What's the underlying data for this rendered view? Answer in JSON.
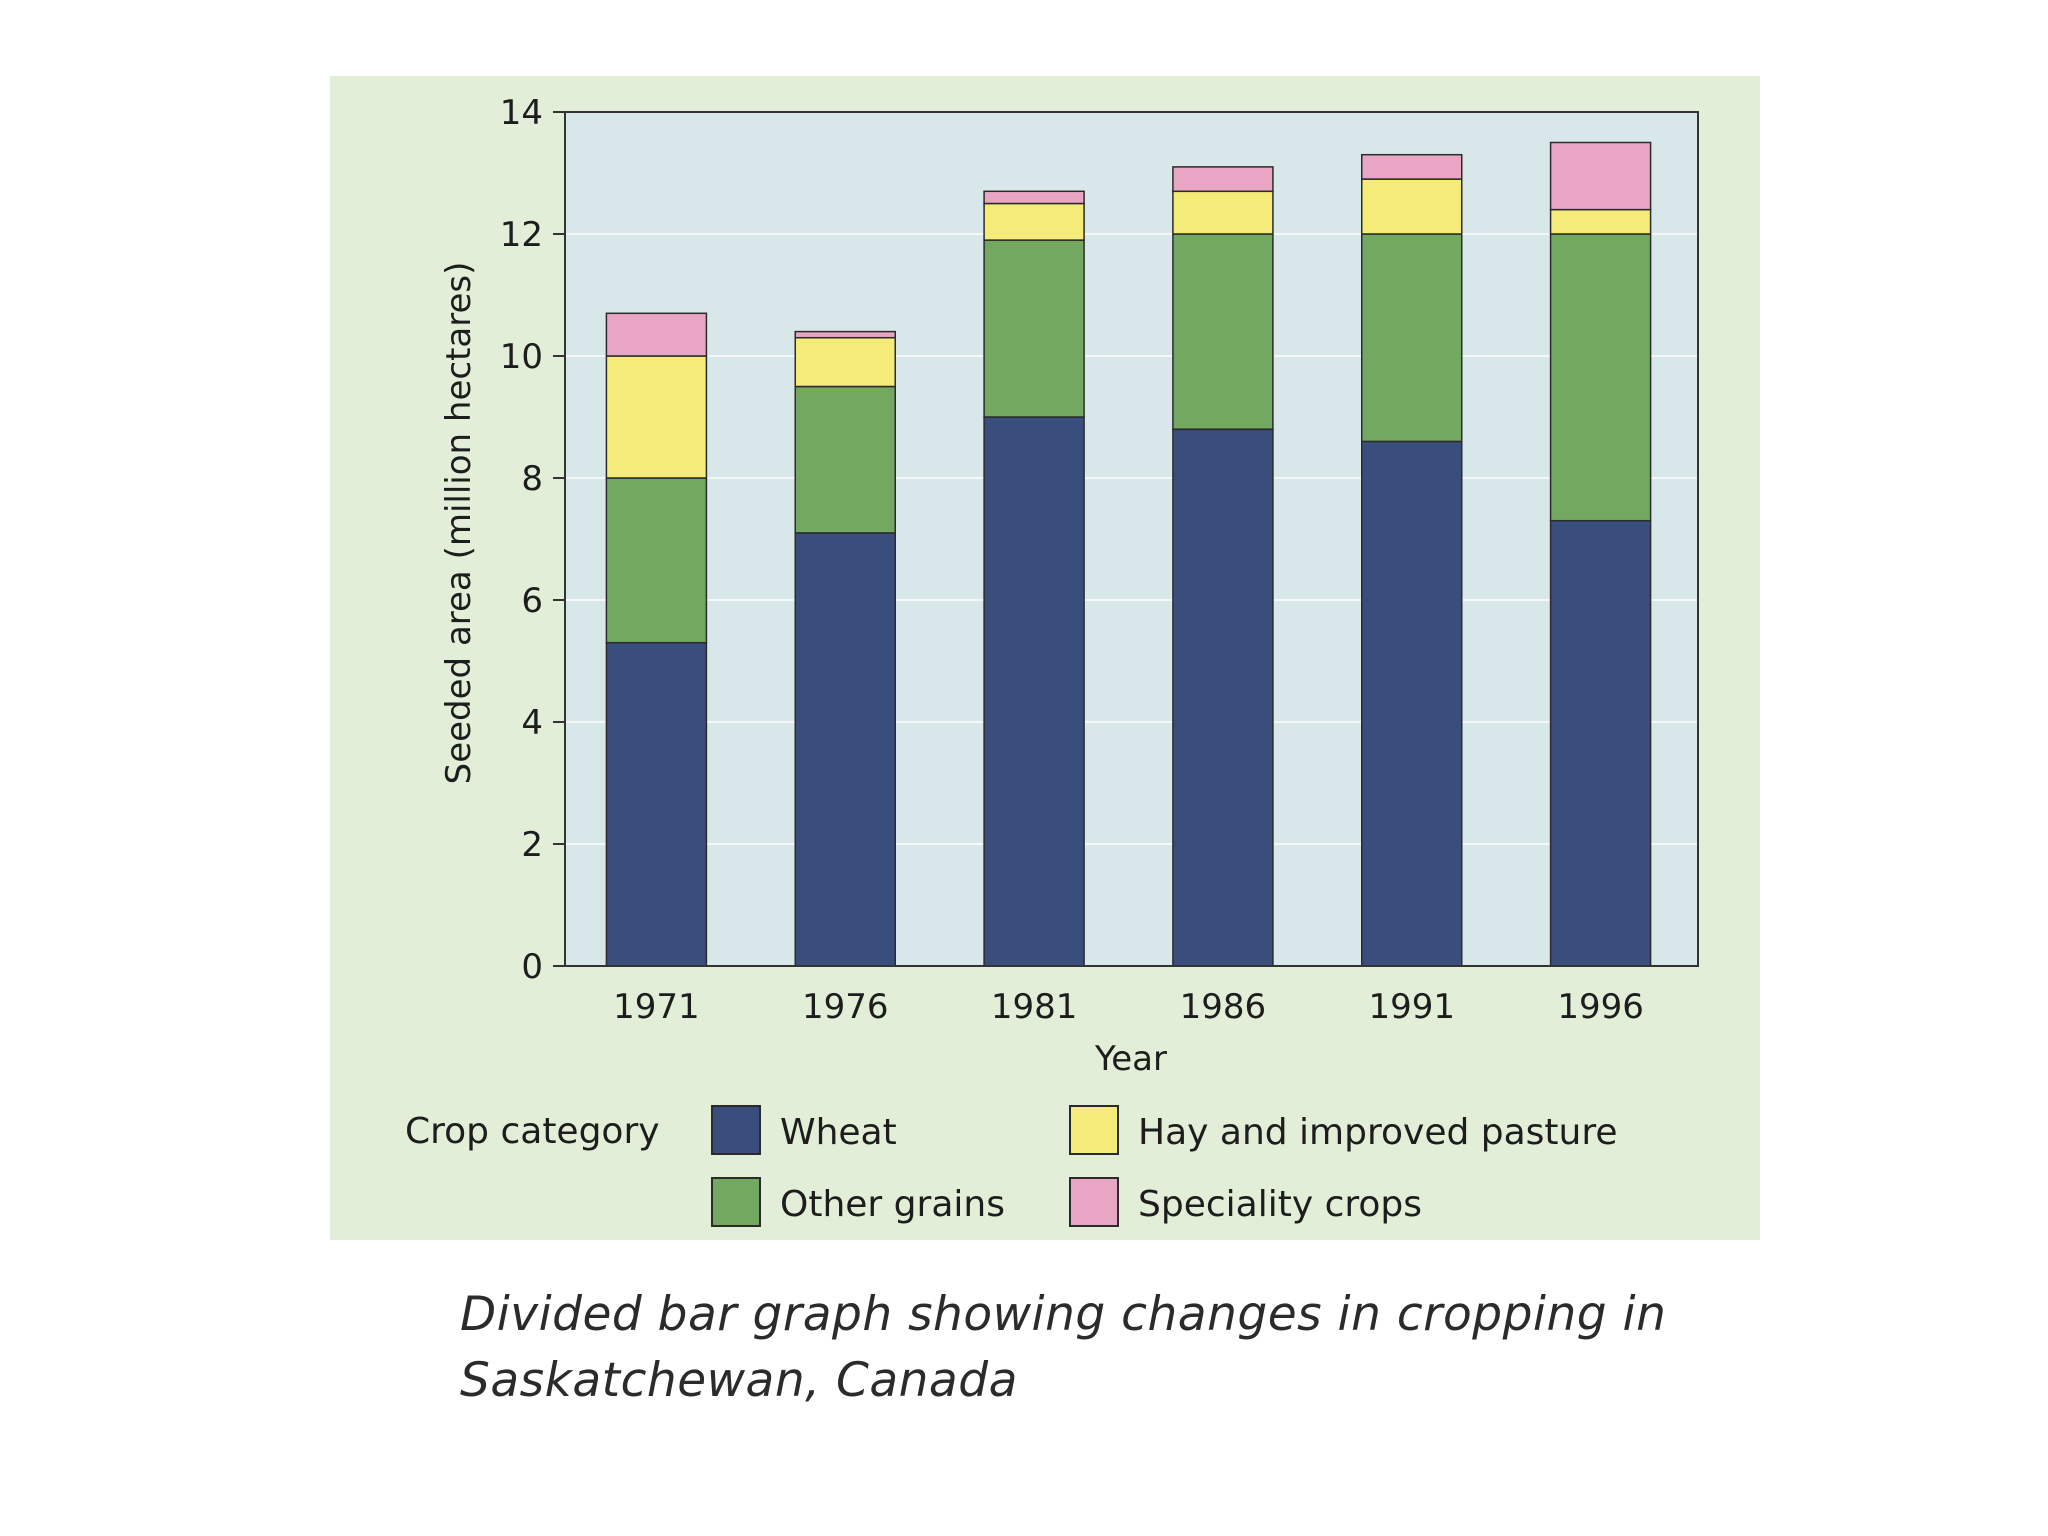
{
  "caption": "Divided bar graph showing changes in cropping in Saskatchewan, Canada",
  "legend": {
    "title": "Crop category"
  },
  "colors": {
    "panel_background": "#e3eed8",
    "plot_background": "#d8e8ea",
    "gridline": "#f4f8f8",
    "axis": "#333333"
  },
  "chart_data": {
    "type": "bar",
    "stacked": true,
    "title": "",
    "xlabel": "Year",
    "ylabel": "Seeded area (million hectares)",
    "ylim": [
      0,
      14
    ],
    "yticks": [
      0,
      2,
      4,
      6,
      8,
      10,
      12,
      14
    ],
    "grid": true,
    "legend_position": "bottom",
    "categories": [
      "1971",
      "1976",
      "1981",
      "1986",
      "1991",
      "1996"
    ],
    "series": [
      {
        "name": "Wheat",
        "color": "#3a4e7e",
        "values": [
          5.3,
          7.1,
          9.0,
          8.8,
          8.6,
          7.3
        ]
      },
      {
        "name": "Other grains",
        "color": "#72a860",
        "values": [
          2.7,
          2.4,
          2.9,
          3.2,
          3.4,
          4.7
        ]
      },
      {
        "name": "Hay and improved pasture",
        "color": "#f4eb78",
        "values": [
          2.0,
          0.8,
          0.6,
          0.7,
          0.9,
          0.4
        ]
      },
      {
        "name": "Speciality crops",
        "color": "#e9a6c4",
        "values": [
          0.7,
          0.1,
          0.2,
          0.4,
          0.4,
          1.1
        ]
      }
    ]
  }
}
